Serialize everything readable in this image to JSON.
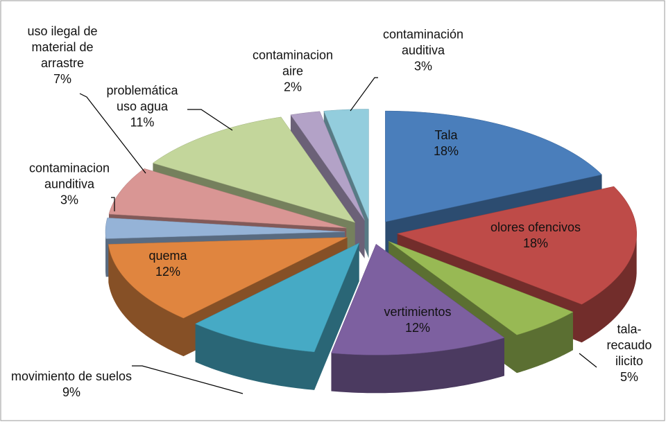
{
  "chart_data": {
    "type": "pie",
    "categories": [
      "Tala",
      "olores ofencivos",
      "tala-recaudo ilicito",
      "vertimientos",
      "movimiento de suelos",
      "quema",
      "contaminacion aunditiva",
      "uso ilegal de material de arrastre",
      "problemática uso agua",
      "contaminacion aire",
      "contaminación auditiva"
    ],
    "values": [
      18,
      18,
      5,
      12,
      9,
      12,
      3,
      7,
      11,
      2,
      3
    ],
    "value_labels": [
      "18%",
      "18%",
      "5%",
      "12%",
      "9%",
      "12%",
      "3%",
      "7%",
      "11%",
      "2%",
      "3%"
    ],
    "colors": [
      "#4a7ebb",
      "#be4b48",
      "#98b954",
      "#7d60a0",
      "#46aac5",
      "#e0853f",
      "#95b3d7",
      "#d99694",
      "#c3d69b",
      "#b3a2c7",
      "#93cddd"
    ]
  }
}
